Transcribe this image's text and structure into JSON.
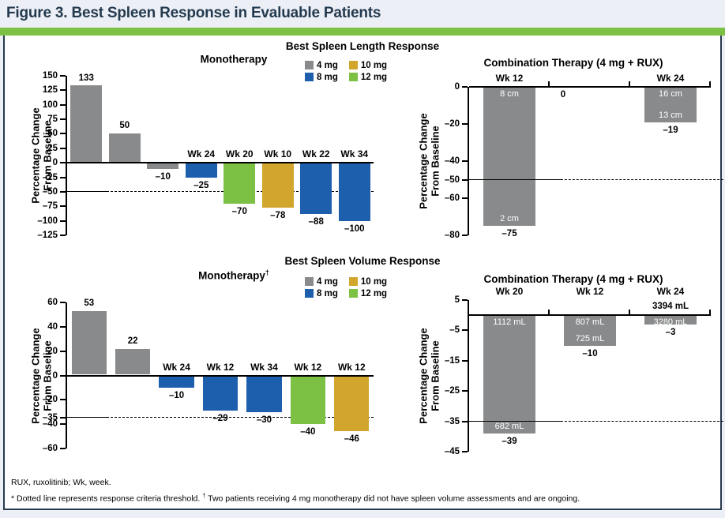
{
  "figure": {
    "title": "Figure 3. Best Spleen Response in Evaluable Patients"
  },
  "colors": {
    "accent_green": "#7CC144",
    "title_navy": "#243A4E",
    "panel_border": "#27394C",
    "dose_colors": {
      "4 mg": "#888A8C",
      "8 mg": "#1E5FAD",
      "10 mg": "#D2A62C",
      "12 mg": "#7CC144"
    }
  },
  "legend": {
    "items": [
      {
        "label": "4 mg"
      },
      {
        "label": "8 mg"
      },
      {
        "label": "10 mg"
      },
      {
        "label": "12 mg"
      }
    ]
  },
  "chart_data": [
    {
      "id": "length-monotherapy",
      "type": "bar",
      "group_title": "Best Spleen Length Response",
      "subtitle": "Monotherapy",
      "ylabel": [
        "Percentage Change",
        "From Baseline"
      ],
      "ylim": [
        -125,
        150
      ],
      "yticks": [
        150,
        125,
        100,
        75,
        50,
        25,
        0,
        -25,
        -50,
        -75,
        -100,
        -125
      ],
      "threshold": -50,
      "grid": false,
      "bars": [
        {
          "dose": "4 mg",
          "value": 133
        },
        {
          "dose": "4 mg",
          "value": 50
        },
        {
          "dose": "4 mg",
          "value": -10
        },
        {
          "dose": "8 mg",
          "value": -25,
          "week": "Wk 24"
        },
        {
          "dose": "12 mg",
          "value": -70,
          "week": "Wk 20"
        },
        {
          "dose": "10 mg",
          "value": -78,
          "week": "Wk 10"
        },
        {
          "dose": "8 mg",
          "value": -88,
          "week": "Wk 22"
        },
        {
          "dose": "8 mg",
          "value": -100,
          "week": "Wk 34"
        }
      ]
    },
    {
      "id": "length-combination",
      "type": "bar",
      "subtitle": "Combination Therapy (4 mg + RUX)",
      "ylabel": [
        "Percentage Change",
        "From Baseline"
      ],
      "ylim": [
        -80,
        0
      ],
      "yticks": [
        0,
        -20,
        -40,
        -50,
        -60,
        -80
      ],
      "threshold": -50,
      "grid": false,
      "bars": [
        {
          "dose": "4 mg",
          "value": -75,
          "week": "Wk 12",
          "bar_top_label": "8 cm",
          "bar_bottom_label": "2 cm"
        },
        {
          "dose": "4 mg",
          "value": 0
        },
        {
          "dose": "4 mg",
          "value": -19,
          "week": "Wk 24",
          "bar_top_label": "16 cm",
          "bar_bottom_label": "13 cm"
        }
      ]
    },
    {
      "id": "volume-monotherapy",
      "type": "bar",
      "group_title": "Best Spleen Volume Response",
      "subtitle": "Monotherapy",
      "subtitle_sup": "†",
      "ylabel": [
        "Percentage Change",
        "From Baseline"
      ],
      "ylim": [
        -60,
        60
      ],
      "yticks": [
        60,
        40,
        20,
        0,
        -20,
        -35,
        -40,
        -60
      ],
      "threshold": -35,
      "grid": false,
      "bars": [
        {
          "dose": "4 mg",
          "value": 53
        },
        {
          "dose": "4 mg",
          "value": 22
        },
        {
          "dose": "8 mg",
          "value": -10,
          "week": "Wk 24"
        },
        {
          "dose": "8 mg",
          "value": -29,
          "week": "Wk 12"
        },
        {
          "dose": "8 mg",
          "value": -30,
          "week": "Wk 34"
        },
        {
          "dose": "12 mg",
          "value": -40,
          "week": "Wk 12"
        },
        {
          "dose": "10 mg",
          "value": -46,
          "week": "Wk 12"
        }
      ]
    },
    {
      "id": "volume-combination",
      "type": "bar",
      "subtitle": "Combination Therapy (4 mg + RUX)",
      "ylabel": [
        "Percentage Change",
        "From Baseline"
      ],
      "ylim": [
        -45,
        5
      ],
      "yticks": [
        5,
        -5,
        -15,
        -25,
        -35,
        -45
      ],
      "threshold": -35,
      "grid": false,
      "bars": [
        {
          "dose": "4 mg",
          "value": -39,
          "week": "Wk 20",
          "bar_top_label": "1112 mL",
          "bar_bottom_label": "682 mL"
        },
        {
          "dose": "4 mg",
          "value": -10,
          "week": "Wk 12",
          "bar_top_label": "807 mL",
          "bar_bottom_label": "725 mL"
        },
        {
          "dose": "4 mg",
          "value": -3,
          "week": "Wk 24",
          "above_axis_label": "3394 mL",
          "bar_top_label": "3280 mL"
        }
      ]
    }
  ],
  "footnotes": {
    "line1": "RUX, ruxolitinib; Wk, week.",
    "line2_a": "* Dotted line represents response criteria threshold. ",
    "line2_sup": "†",
    "line2_b": " Two patients receiving 4 mg monotherapy did not have spleen volume assessments and are ongoing."
  }
}
